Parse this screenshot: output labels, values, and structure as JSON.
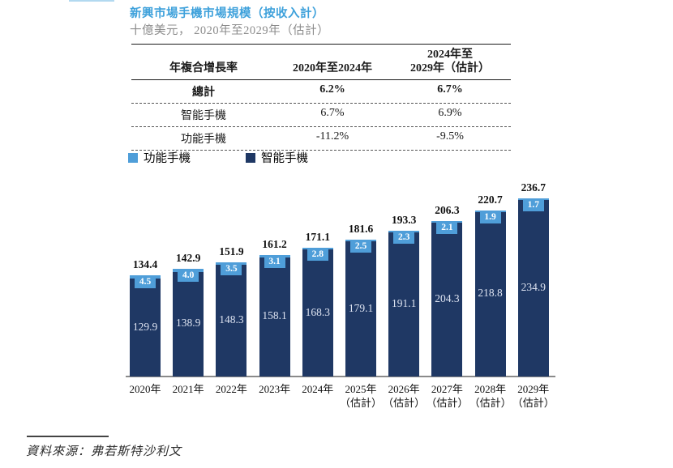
{
  "title": "新興市場手機市場規模（按收入計）",
  "subtitle": "十億美元， 2020年至2029年（估計）",
  "colors": {
    "title_blue": "#3ea1db",
    "subtitle_gray": "#8c8c8c",
    "navy": "#1f3864",
    "light_blue": "#4f9ed9"
  },
  "table": {
    "col1_header": "年複合增長率",
    "col2_header": "2020年至2024年",
    "col3_header_line1": "2024年至",
    "col3_header_line2": "2029年（估計）",
    "rows": [
      {
        "label": "總計",
        "cagr_2020_2024": "6.2%",
        "cagr_2024_2029": "6.7%",
        "bold": true
      },
      {
        "label": "智能手機",
        "cagr_2020_2024": "6.7%",
        "cagr_2024_2029": "6.9%",
        "bold": false
      },
      {
        "label": "功能手機",
        "cagr_2020_2024": "-11.2%",
        "cagr_2024_2029": "-9.5%",
        "bold": false
      }
    ]
  },
  "legend": [
    {
      "label": "功能手機",
      "color": "#4f9ed9"
    },
    {
      "label": "智能手機",
      "color": "#1f3864"
    }
  ],
  "chart_data": {
    "type": "bar",
    "stacked": true,
    "title": "新興市場手機市場規模（按收入計）",
    "unit_label": "十億美元",
    "categories": [
      "2020年",
      "2021年",
      "2022年",
      "2023年",
      "2024年",
      "2025年",
      "2026年",
      "2027年",
      "2028年",
      "2029年"
    ],
    "category_notes": [
      "",
      "",
      "",
      "",
      "",
      "（估計）",
      "（估計）",
      "（估計）",
      "（估計）",
      "（估計）"
    ],
    "series": [
      {
        "name": "智能手機",
        "color": "#1f3864",
        "values": [
          129.9,
          138.9,
          148.3,
          158.1,
          168.3,
          179.1,
          191.1,
          204.3,
          218.8,
          234.9
        ]
      },
      {
        "name": "功能手機",
        "color": "#4f9ed9",
        "values": [
          4.5,
          4.0,
          3.5,
          3.1,
          2.8,
          2.5,
          2.3,
          2.1,
          1.9,
          1.7
        ]
      }
    ],
    "totals": [
      134.4,
      142.9,
      151.9,
      161.2,
      171.1,
      181.6,
      193.3,
      206.3,
      220.7,
      236.7
    ],
    "ylim": [
      0,
      250
    ],
    "grid": false,
    "legend_position": "top-left"
  },
  "source": "資料來源：弗若斯特沙利文"
}
